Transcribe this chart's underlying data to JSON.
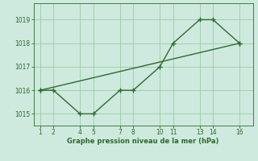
{
  "line1_x": [
    1,
    2,
    4,
    5,
    7,
    8,
    10,
    11,
    13,
    14,
    16
  ],
  "line1_y": [
    1016,
    1016,
    1015,
    1015,
    1016,
    1016,
    1017,
    1018,
    1019,
    1019,
    1018
  ],
  "line2_x": [
    1,
    16
  ],
  "line2_y": [
    1016,
    1018
  ],
  "line_color": "#2d6a2d",
  "bg_color": "#ceeade",
  "grid_color": "#9dc9a8",
  "xlabel": "Graphe pression niveau de la mer (hPa)",
  "xticks": [
    1,
    2,
    4,
    5,
    7,
    8,
    10,
    11,
    13,
    14,
    16
  ],
  "yticks": [
    1015,
    1016,
    1017,
    1018,
    1019
  ],
  "xlim": [
    0.5,
    17
  ],
  "ylim": [
    1014.5,
    1019.7
  ],
  "marker": "+",
  "markersize": 4,
  "linewidth": 1.0
}
